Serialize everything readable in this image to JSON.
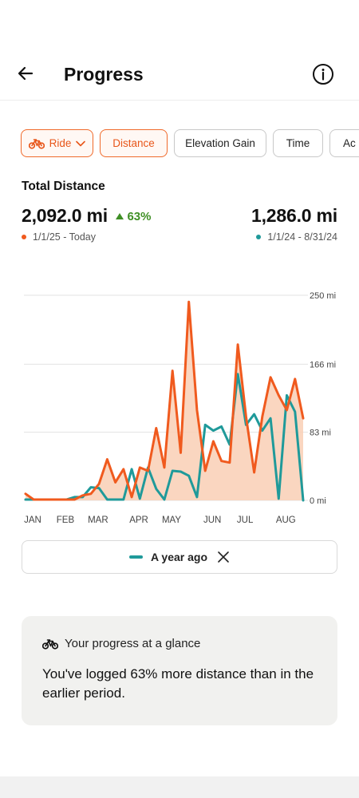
{
  "header": {
    "title": "Progress",
    "back_icon": "back-arrow-icon",
    "info_icon": "info-icon"
  },
  "filters": {
    "sport": {
      "label": "Ride",
      "icon": "bike-icon",
      "chevron": "chevron-down-icon"
    },
    "chips": [
      {
        "label": "Distance",
        "selected": true
      },
      {
        "label": "Elevation Gain",
        "selected": false
      },
      {
        "label": "Time",
        "selected": false
      },
      {
        "label": "Ac",
        "selected": false
      }
    ]
  },
  "summary": {
    "label": "Total Distance",
    "current": {
      "value": "2,092.0 mi",
      "change": "63%",
      "range": "1/1/25 - Today",
      "color": "#f05a1e"
    },
    "previous": {
      "value": "1,286.0 mi",
      "range": "1/1/24 - 8/31/24",
      "color": "#1f9a9a"
    },
    "up_color": "#3f8f25"
  },
  "chart_data": {
    "type": "line",
    "ylim": [
      0,
      250
    ],
    "y_tick_values": [
      0,
      83,
      166,
      250
    ],
    "y_tick_labels": [
      "0 mi",
      "83 mi",
      "166 mi",
      "250 mi"
    ],
    "x_tick_labels": [
      "JAN",
      "FEB",
      "MAR",
      "APR",
      "MAY",
      "JUN",
      "JUL",
      "AUG"
    ],
    "x_tick_weeks": [
      1,
      5,
      9,
      14,
      18,
      23,
      27,
      32
    ],
    "series": [
      {
        "name": "1/1/25 - Today",
        "color": "#f05a1e",
        "fill": true,
        "values": [
          8,
          1,
          1,
          1,
          1,
          1,
          1,
          6,
          8,
          20,
          50,
          22,
          38,
          4,
          40,
          36,
          88,
          40,
          158,
          58,
          242,
          110,
          36,
          72,
          48,
          46,
          190,
          102,
          34,
          102,
          150,
          128,
          110,
          148,
          100
        ]
      },
      {
        "name": "A year ago",
        "color": "#1f9a9a",
        "fill": false,
        "values": [
          1,
          1,
          1,
          1,
          1,
          1,
          4,
          4,
          16,
          15,
          1,
          1,
          1,
          38,
          2,
          40,
          14,
          1,
          36,
          35,
          30,
          4,
          92,
          85,
          90,
          68,
          154,
          92,
          105,
          85,
          100,
          2,
          128,
          108,
          0
        ]
      }
    ]
  },
  "comparison": {
    "label": "A year ago",
    "close_icon": "close-icon"
  },
  "glance": {
    "title": "Your progress at a glance",
    "icon": "bike-icon",
    "body": "You've logged 63% more distance than in the earlier period."
  }
}
